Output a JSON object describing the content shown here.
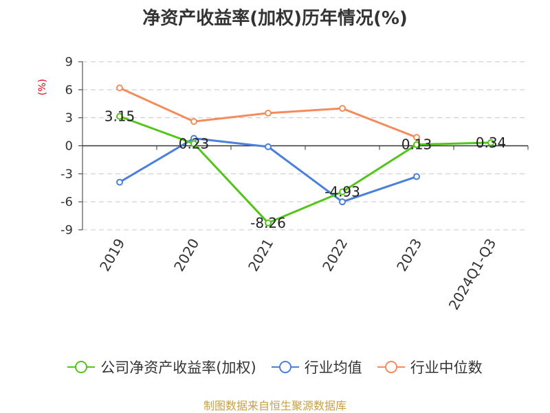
{
  "chart_data": {
    "type": "line",
    "title": "净资产收益率(加权)历年情况(%)",
    "ylabel": "(%)",
    "categories": [
      "2019",
      "2020",
      "2021",
      "2022",
      "2023",
      "2024Q1-Q3"
    ],
    "ylim": [
      -9,
      9
    ],
    "yticks": [
      9,
      6,
      3,
      0,
      -3,
      -6,
      -9
    ],
    "grid": true,
    "legend_position": "bottom",
    "series": [
      {
        "name": "公司净资产收益率(加权)",
        "color": "#52c41a",
        "values": [
          3.15,
          0.23,
          -8.26,
          -4.93,
          0.13,
          0.34
        ],
        "labels": [
          "3.15",
          "0.23",
          "-8.26",
          "-4.93",
          "0.13",
          "0.34"
        ]
      },
      {
        "name": "行业均值",
        "color": "#4a7fdc",
        "values": [
          -3.9,
          0.8,
          -0.1,
          -6.0,
          -3.3,
          null
        ]
      },
      {
        "name": "行业中位数",
        "color": "#f58b5a",
        "values": [
          6.2,
          2.6,
          3.5,
          4.0,
          0.9,
          null
        ]
      }
    ]
  },
  "footer": "制图数据来自恒生聚源数据库"
}
